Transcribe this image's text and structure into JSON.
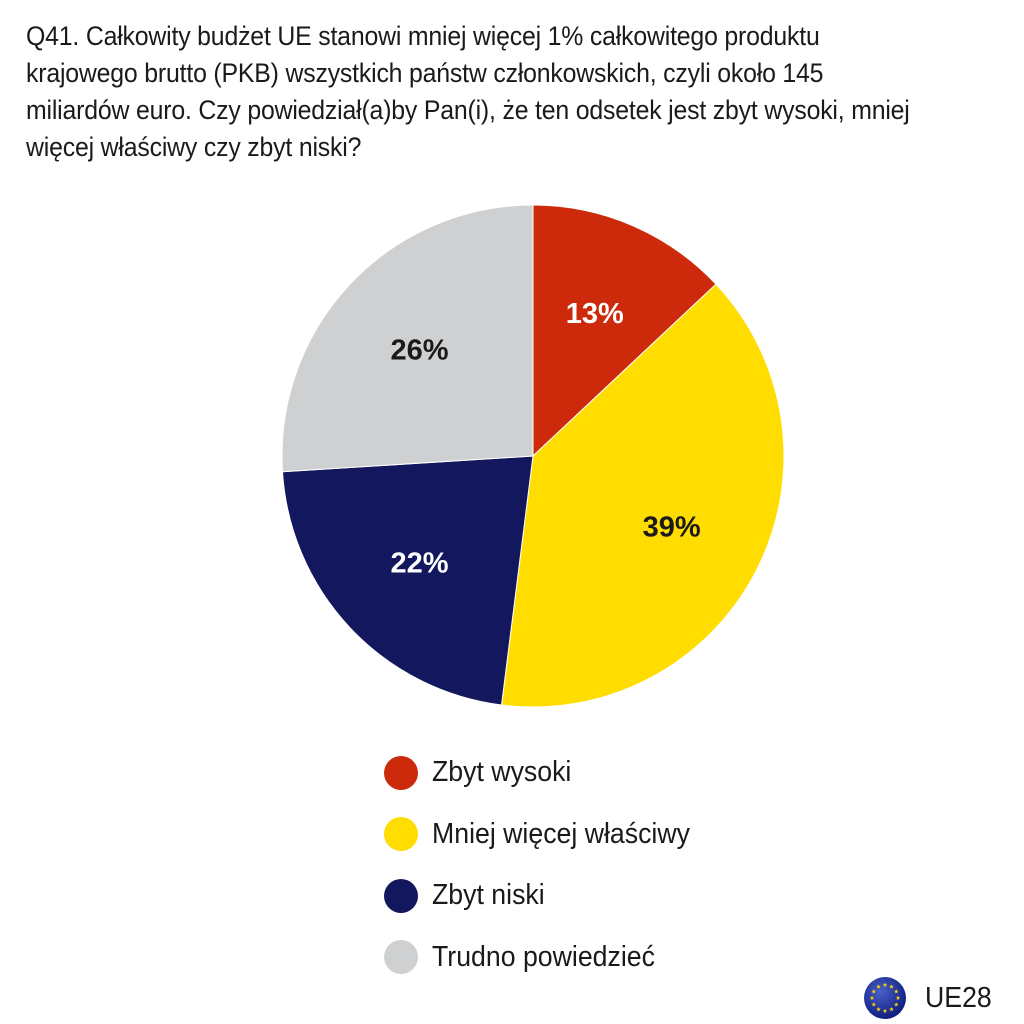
{
  "chart_data": {
    "type": "pie",
    "title": "Q41. Całkowity budżet UE stanowi mniej więcej 1% całkowitego produktu krajowego brutto (PKB) wszystkich państw członkowskich, czyli około 145 miliardów euro. Czy powiedział(a)by Pan(i), że ten odsetek jest zbyt wysoki, mniej więcej właściwy czy zbyt niski?",
    "slices": [
      {
        "label": "Zbyt wysoki",
        "value": 13,
        "display": "13%",
        "color": "#cc2a0a",
        "text_color": "#ffffff"
      },
      {
        "label": "Mniej więcej właściwy",
        "value": 39,
        "display": "39%",
        "color": "#ffdd00",
        "text_color": "#1a1a1a"
      },
      {
        "label": "Zbyt niski",
        "value": 22,
        "display": "22%",
        "color": "#12175e",
        "text_color": "#ffffff"
      },
      {
        "label": "Trudno powiedzieć",
        "value": 26,
        "display": "26%",
        "color": "#cfd0d2",
        "text_color": "#1a1a1a"
      }
    ],
    "start_angle": "12 o'clock",
    "direction": "clockwise",
    "legend_position": "bottom-center"
  },
  "footer": {
    "label": "UE28",
    "icon": "eu-flag-icon"
  }
}
